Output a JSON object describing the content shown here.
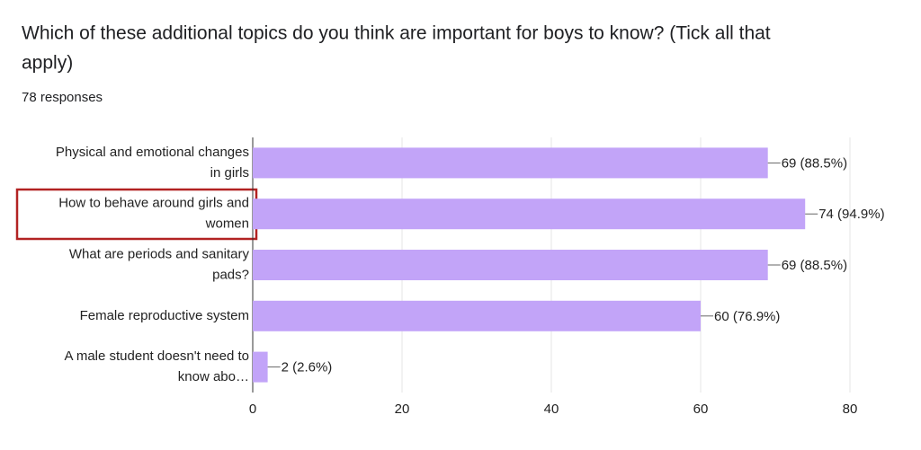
{
  "chart_data": {
    "type": "bar",
    "orientation": "horizontal",
    "title": "Which of these additional topics do you think are important for boys to know? (Tick all that apply)",
    "title_lines": [
      "Which of these additional topics do you think are important for boys to know? (Tick all that",
      "apply)"
    ],
    "subtitle": "78 responses",
    "categories": [
      [
        "Physical and emotional changes",
        "in girls"
      ],
      [
        "How to behave around girls and",
        "women"
      ],
      [
        "What are periods and sanitary",
        "pads?"
      ],
      [
        "Female reproductive system"
      ],
      [
        "A male student doesn't need to",
        "know abo…"
      ]
    ],
    "values": [
      69,
      74,
      69,
      60,
      2
    ],
    "value_labels": [
      "69 (88.5%)",
      "74 (94.9%)",
      "69 (88.5%)",
      "60 (76.9%)",
      "2 (2.6%)"
    ],
    "color": "#c2a4f8",
    "xlim": [
      0,
      80
    ],
    "xticks": [
      0,
      20,
      40,
      60,
      80
    ],
    "grid": true
  }
}
